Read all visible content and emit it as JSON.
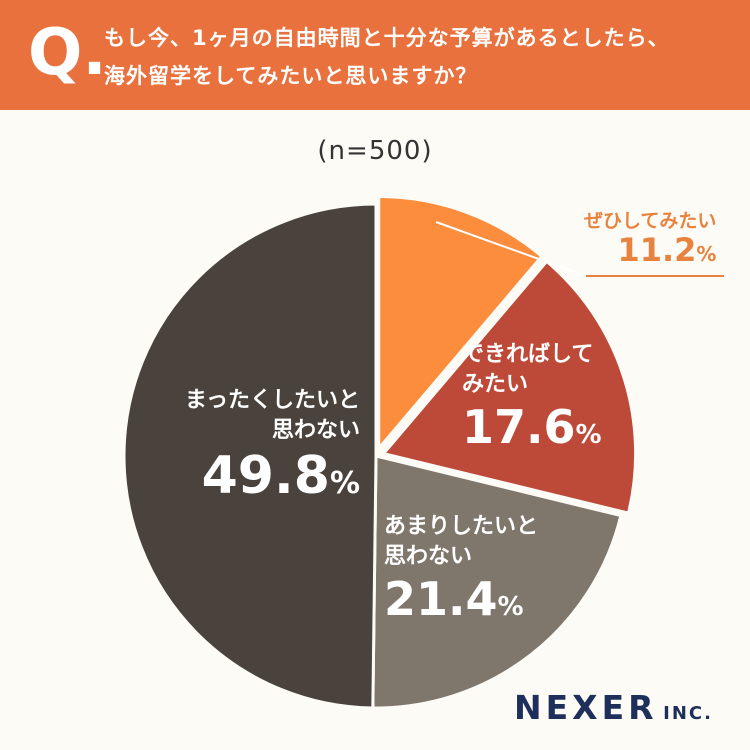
{
  "header": {
    "q_mark": "Q.",
    "question_line1": "もし今、1ヶ月の自由時間と十分な予算があるとしたら、",
    "question_line2": "海外留学をしてみたいと思いますか？"
  },
  "sample_size": "(n=500)",
  "chart_data": {
    "type": "pie",
    "slices": [
      {
        "label": "ぜひしてみたい",
        "value": 11.2,
        "display": "11.2",
        "color": "#FB8D3D"
      },
      {
        "label": "できればしてみたい",
        "label_line1": "できればして",
        "label_line2": "みたい",
        "value": 17.6,
        "display": "17.6",
        "color": "#BD4A39"
      },
      {
        "label": "あまりしたいと思わない",
        "label_line1": "あまりしたいと",
        "label_line2": "思わない",
        "value": 21.4,
        "display": "21.4",
        "color": "#80776C"
      },
      {
        "label": "まったくしたいと思わない",
        "label_line1": "まったくしたいと",
        "label_line2": "思わない",
        "value": 49.8,
        "display": "49.8",
        "color": "#4A433D"
      }
    ],
    "unit": "%"
  },
  "logo": {
    "main": "NEXER",
    "suffix": "INC."
  }
}
